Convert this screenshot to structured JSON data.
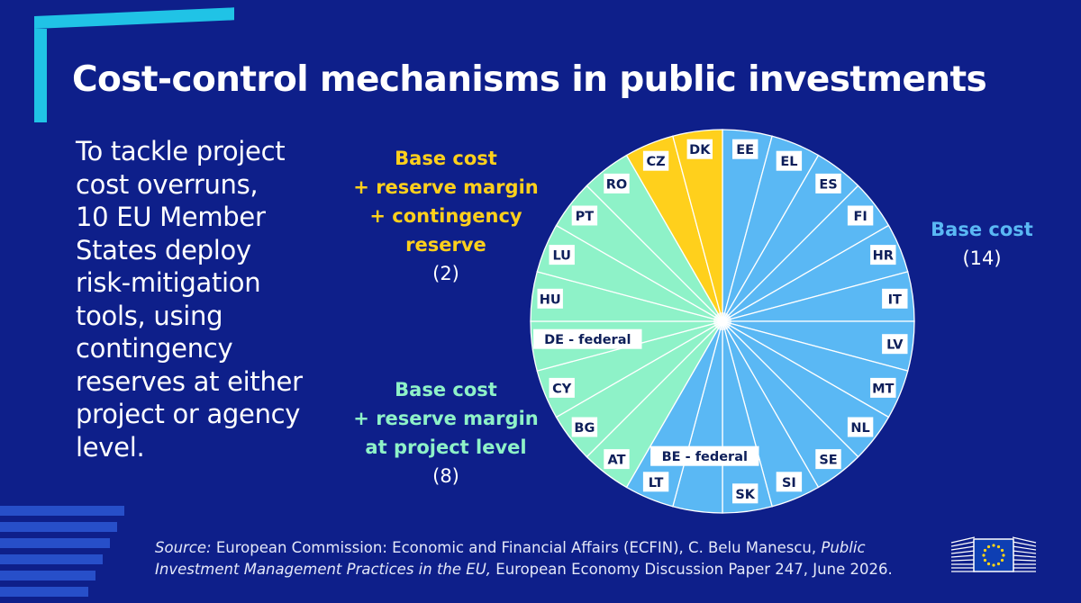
{
  "title": "Cost-control mechanisms in public investments",
  "intro_text": "To tackle project cost overruns, 10 EU Member States deploy risk-mitigation tools, using contingency reserves at either project or agency level.",
  "intro_lines": [
    "To tackle project",
    "cost overruns,",
    "10 EU Member",
    "States deploy",
    "risk-mitigation",
    "tools, using",
    "contingency",
    "reserves at either",
    "project or agency",
    "level."
  ],
  "groups": {
    "yellow": {
      "lines": [
        "Base cost",
        "+ reserve margin",
        "+ contingency",
        "reserve"
      ],
      "count": "(2)",
      "color": "#ffd01c"
    },
    "green": {
      "lines": [
        "Base cost",
        "+ reserve margin",
        "at project level"
      ],
      "count": "(8)",
      "color": "#8ef2c8"
    },
    "blue": {
      "lines": [
        "Base cost"
      ],
      "count": "(14)",
      "color": "#5ab8f4"
    }
  },
  "chart_data": {
    "type": "pie",
    "title": "",
    "start": "12 o'clock, clockwise",
    "slices": [
      {
        "label": "EE",
        "value": 1,
        "group": "blue"
      },
      {
        "label": "EL",
        "value": 1,
        "group": "blue"
      },
      {
        "label": "ES",
        "value": 1,
        "group": "blue"
      },
      {
        "label": "FI",
        "value": 1,
        "group": "blue"
      },
      {
        "label": "HR",
        "value": 1,
        "group": "blue"
      },
      {
        "label": "IT",
        "value": 1,
        "group": "blue"
      },
      {
        "label": "LV",
        "value": 1,
        "group": "blue"
      },
      {
        "label": "MT",
        "value": 1,
        "group": "blue"
      },
      {
        "label": "NL",
        "value": 1,
        "group": "blue"
      },
      {
        "label": "SE",
        "value": 1,
        "group": "blue"
      },
      {
        "label": "SI",
        "value": 1,
        "group": "blue"
      },
      {
        "label": "SK",
        "value": 1,
        "group": "blue"
      },
      {
        "label": "BE - federal",
        "value": 1,
        "group": "blue"
      },
      {
        "label": "LT",
        "value": 1,
        "group": "blue"
      },
      {
        "label": "AT",
        "value": 1,
        "group": "green"
      },
      {
        "label": "BG",
        "value": 1,
        "group": "green"
      },
      {
        "label": "CY",
        "value": 1,
        "group": "green"
      },
      {
        "label": "DE - federal",
        "value": 1,
        "group": "green"
      },
      {
        "label": "HU",
        "value": 1,
        "group": "green"
      },
      {
        "label": "LU",
        "value": 1,
        "group": "green"
      },
      {
        "label": "PT",
        "value": 1,
        "group": "green"
      },
      {
        "label": "RO",
        "value": 1,
        "group": "green"
      },
      {
        "label": "CZ",
        "value": 1,
        "group": "yellow"
      },
      {
        "label": "DK",
        "value": 1,
        "group": "yellow"
      }
    ]
  },
  "source": {
    "prefix": "Source:",
    "text1": " European Commission: Economic and Financial Affairs (ECFIN), C. Belu Manescu, ",
    "title1": "Public",
    "title2": "Investment Management Practices in the EU,",
    "text2": " European Economy Discussion Paper 247, June 2026."
  },
  "colors": {
    "background": "#0e1f8a",
    "accent": "#20c3e6",
    "slice_border": "#ffffff",
    "eu_flag": "#0e3fb3",
    "eu_stars": "#ffd617"
  },
  "icons": [
    "corner-bracket-decoration",
    "stripes-decoration",
    "european-commission-logo-icon"
  ]
}
